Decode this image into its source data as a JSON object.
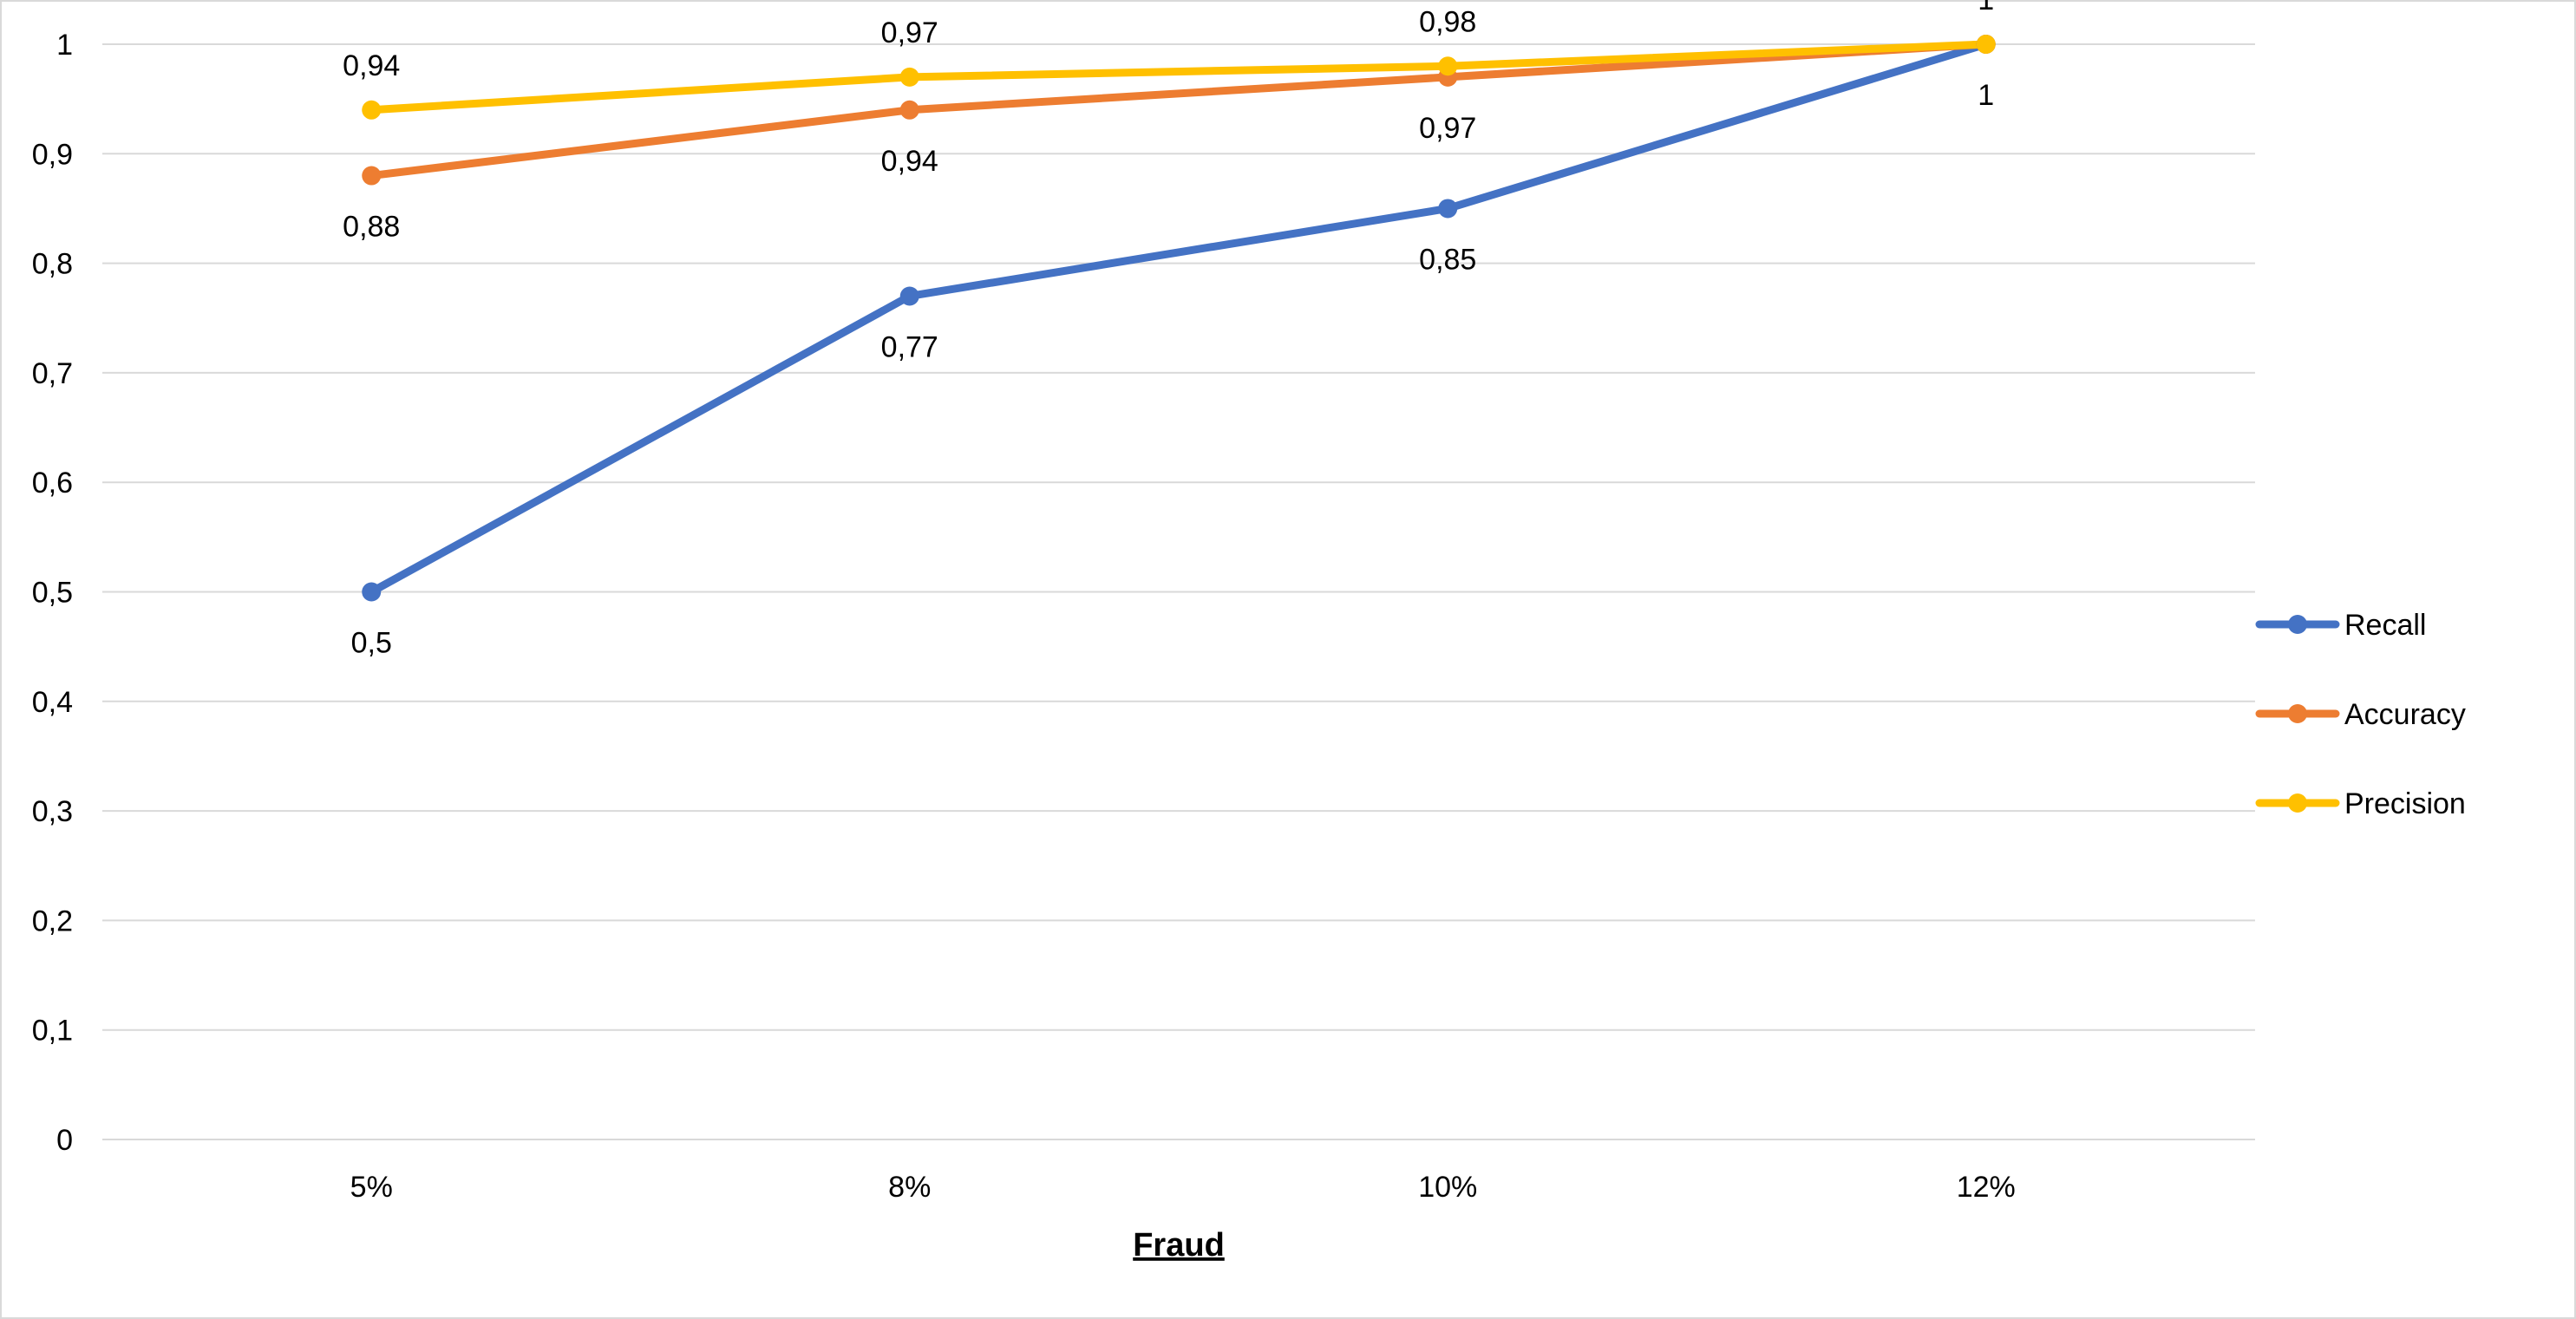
{
  "chart_data": {
    "type": "line",
    "title": "",
    "xlabel": "Fraud",
    "ylabel": "",
    "categories": [
      "5%",
      "8%",
      "10%",
      "12%"
    ],
    "ylim": [
      0,
      1
    ],
    "yticks": [
      "0",
      "0,1",
      "0,2",
      "0,3",
      "0,4",
      "0,5",
      "0,6",
      "0,7",
      "0,8",
      "0,9",
      "1"
    ],
    "grid": true,
    "legend_position": "right",
    "series": [
      {
        "name": "Recall",
        "color": "#4472c4",
        "values": [
          0.5,
          0.77,
          0.85,
          1
        ],
        "labels": [
          "0,5",
          "0,77",
          "0,85",
          "1"
        ],
        "label_pos": "below"
      },
      {
        "name": "Accuracy",
        "color": "#ed7d31",
        "values": [
          0.88,
          0.94,
          0.97,
          1
        ],
        "labels": [
          "0,88",
          "0,94",
          "0,97",
          ""
        ],
        "label_pos": "below"
      },
      {
        "name": "Precision",
        "color": "#ffc000",
        "values": [
          0.94,
          0.97,
          0.98,
          1
        ],
        "labels": [
          "0,94",
          "0,97",
          "0,98",
          "1"
        ],
        "label_pos": "above"
      }
    ]
  }
}
